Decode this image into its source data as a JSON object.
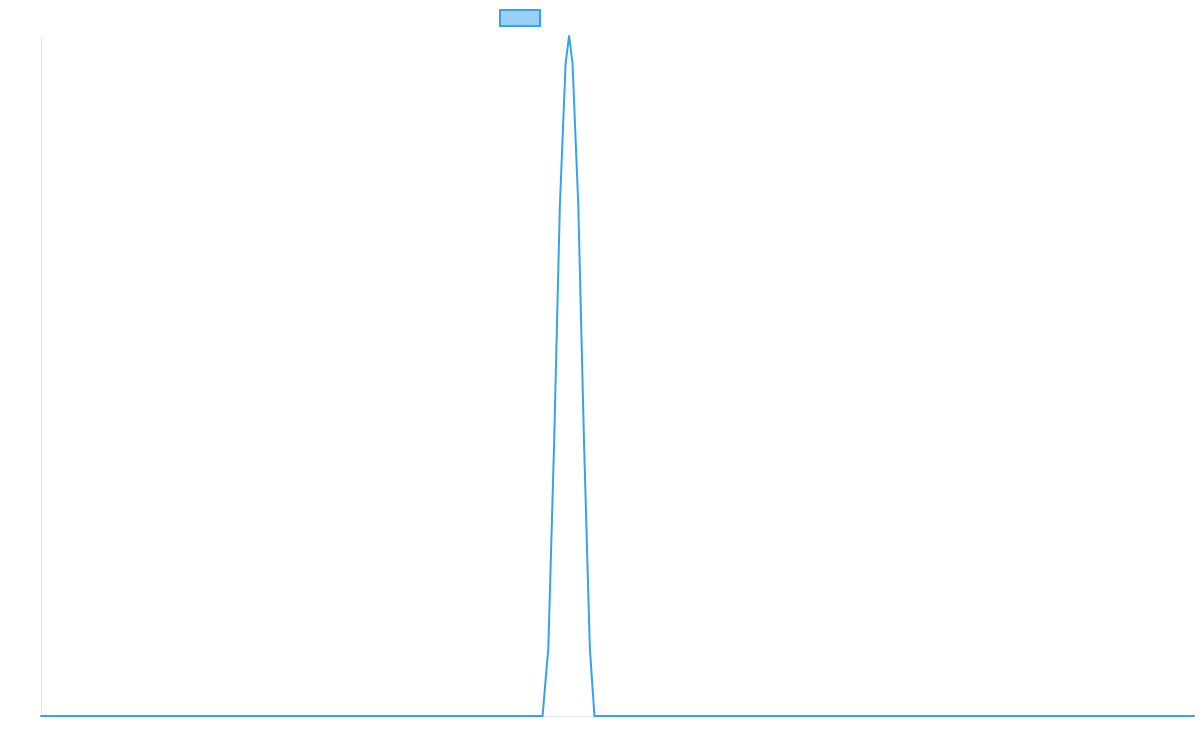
{
  "chart_data": {
    "type": "line",
    "title": "",
    "xlabel": "",
    "ylabel": "",
    "xlim": [
      0,
      100
    ],
    "ylim": [
      0,
      1
    ],
    "grid": false,
    "legend": "top-center",
    "series": [
      {
        "name": "",
        "color": "#36a2eb",
        "fill": "#9ad0f5",
        "points": [
          [
            0,
            0
          ],
          [
            43.5,
            0
          ],
          [
            44,
            0.1
          ],
          [
            44.5,
            0.4
          ],
          [
            45,
            0.75
          ],
          [
            45.5,
            0.96
          ],
          [
            45.8,
            1.0
          ],
          [
            46.1,
            0.96
          ],
          [
            46.6,
            0.75
          ],
          [
            47.1,
            0.4
          ],
          [
            47.6,
            0.1
          ],
          [
            48,
            0
          ],
          [
            100,
            0
          ]
        ]
      }
    ]
  }
}
